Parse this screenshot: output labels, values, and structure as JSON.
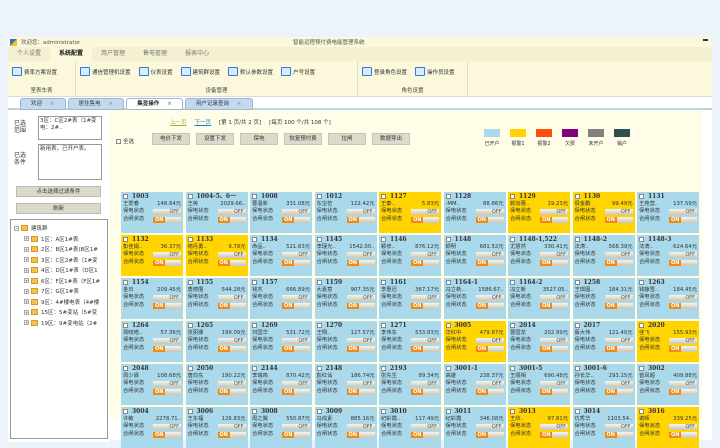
{
  "window": {
    "welcome": "欢迎您：administrator",
    "app_title": "智能远程预付费电能管理系统"
  },
  "menu": [
    "个人设置",
    "系统配置",
    "用户管理",
    "售电管理",
    "报表中心"
  ],
  "menu_active": 1,
  "ribbon": [
    {
      "group": "室表车表",
      "items": [
        "费率方案设置"
      ]
    },
    {
      "group": "设备管理",
      "items": [
        "通信管理机设置",
        "仪表设置",
        "建筑群设置",
        "默认参数设置",
        "户号设置"
      ]
    },
    {
      "group": "角色设置",
      "items": [
        "登录角色设置",
        "操作员设置"
      ]
    }
  ],
  "doc_tabs": [
    "欢迎",
    "居住售电",
    "集显操作",
    "用户记录查询"
  ],
  "doc_tab_active": 2,
  "left": {
    "range_label": "已选范围",
    "range_value": "3区：C区2#表（1#变电：2#..",
    "cond_label": "已选条件",
    "cond_value": "新用表，已开户表。",
    "filter_button": "点击选择过滤条件",
    "refresh_button": "刷新",
    "tree_root": "建筑群",
    "tree": [
      "1区：A区1#表",
      "2区：B区1#表(B区1#",
      "3区：C区2#表（1#变",
      "4区：D区1#表（D区1",
      "6区：F区1#表（F区1#",
      "7区：G区1#表",
      "9区：4#楼电表（4#楼",
      "15区：5#变站（5#变",
      "19区：9#变电站（2#"
    ]
  },
  "pager": {
    "prev": "上一页",
    "next": "下一页",
    "page_info": "[第 1 页/共 2 页]",
    "count_info": "[每页 100 个/共 108 个]"
  },
  "select_all": "全选",
  "toolbar": [
    "电价下发",
    "设置下发",
    "保电",
    "恢复预付费",
    "拉闸",
    "数据导出"
  ],
  "legend": [
    {
      "label": "已开户",
      "color": "#a9d9ea"
    },
    {
      "label": "报警1",
      "color": "#ffd400"
    },
    {
      "label": "报警2",
      "color": "#ff4a10"
    },
    {
      "label": "欠费",
      "color": "#800080"
    },
    {
      "label": "未开户",
      "color": "#808080"
    },
    {
      "label": "销户",
      "color": "#2f4f4f"
    }
  ],
  "card_labels": {
    "power_status": "保电状态",
    "switch_status": "合闸状态",
    "off": "OFF",
    "on": "ON"
  },
  "cards": [
    [
      "1003",
      "王爱春",
      "148.84元",
      0
    ],
    [
      "1004-5、6一",
      "王英",
      "2029.66..",
      0
    ],
    [
      "1008",
      "曹温新",
      "331.08元",
      0
    ],
    [
      "1012",
      "东宝莅",
      "122.42元",
      0
    ],
    [
      "1127",
      "王秦..",
      "5.83元",
      1
    ],
    [
      "1128",
      "-MM..",
      "88.86元",
      0
    ],
    [
      "1129",
      "颜加蕾..",
      "19.23元",
      1
    ],
    [
      "1130",
      "俱金鹏",
      "99.49元",
      1
    ],
    [
      "1131",
      "王苑营..",
      "137.59元",
      0
    ],
    [
      "1132",
      "彭佳娟..",
      "36.37元",
      1
    ],
    [
      "1133",
      "德丹勇..",
      "9.78元",
      1
    ],
    [
      "1134",
      "命品..",
      "521.63元",
      0
    ],
    [
      "1145",
      "李瑾光..",
      "1542.00..",
      0
    ],
    [
      "1146",
      "颖修..",
      "876.12元",
      0
    ],
    [
      "1148",
      "颖明",
      "681.52元",
      0
    ],
    [
      "1148-1,522",
      "尤慧然",
      "330.41元",
      0
    ],
    [
      "1148-2",
      "法涛..",
      "568.39元",
      0
    ],
    [
      "1148-3",
      "法涛..",
      "624.64元",
      0
    ],
    [
      "1154",
      "金日",
      "209.45元",
      0
    ],
    [
      "1155",
      "唐德围",
      "544.28元",
      0
    ],
    [
      "1157",
      "钱杰",
      "666.89元",
      0
    ],
    [
      "1159",
      "大嘉意",
      "907.35元",
      0
    ],
    [
      "1161",
      "李惠迟",
      "367.17元",
      0
    ],
    [
      "1164-1",
      "冯立新..",
      "1586.67..",
      0
    ],
    [
      "1164-2",
      "冯立新",
      "3527.05..",
      0
    ],
    [
      "1258",
      "王琪图..",
      "184.31元",
      0
    ],
    [
      "1263",
      "钱静雪..",
      "184.45元",
      0
    ],
    [
      "1264",
      "周晓皓..",
      "57.36元",
      0
    ],
    [
      "1265",
      "张丽娜",
      "199.09元",
      0
    ],
    [
      "1269",
      "刘国华",
      "531.72元",
      0
    ],
    [
      "1270",
      "王翔..",
      "127.57元",
      0
    ],
    [
      "1271",
      "李伟东",
      "533.83元",
      0
    ],
    [
      "3005",
      "华红中",
      "479.87元",
      1
    ],
    [
      "2014",
      "曹国龙",
      "202.99元",
      0
    ],
    [
      "2017",
      "蔡大伟",
      "121.40元",
      0
    ],
    [
      "2020",
      "佳飞",
      "155.93元",
      1
    ],
    [
      "2048",
      "周少霖",
      "108.68元",
      0
    ],
    [
      "2050",
      "唐向东",
      "190.22元",
      0
    ],
    [
      "2144",
      "李瑞鸣",
      "870.42元",
      0
    ],
    [
      "2148",
      "彭红仙",
      "186.74元",
      0
    ],
    [
      "2193",
      "张先生",
      "89.34元",
      0
    ],
    [
      "3001-1",
      "高雄",
      "238.37元",
      0
    ],
    [
      "3001-5",
      "王顺相",
      "690.48元",
      0
    ],
    [
      "3001-6",
      "孙长华..",
      "293.15元",
      0
    ],
    [
      "3002",
      "曾凤超",
      "409.88元",
      0
    ],
    [
      "3004",
      "许敏",
      "2278.71..",
      0
    ],
    [
      "3006",
      "王东福",
      "126.83元",
      0
    ],
    [
      "3008",
      "周之翼",
      "550.87元",
      0
    ],
    [
      "3009",
      "冯成素",
      "885.16元",
      0
    ],
    [
      "3010",
      "纪彩霞..",
      "117.49元",
      0
    ],
    [
      "3011",
      "纪彩霞",
      "346.08元",
      0
    ],
    [
      "3013",
      "王欣..",
      "97.81元",
      1
    ],
    [
      "3014",
      "仇秀华",
      "1103.54..",
      0
    ],
    [
      "3016",
      "谢辉",
      "339.25元",
      1
    ]
  ]
}
